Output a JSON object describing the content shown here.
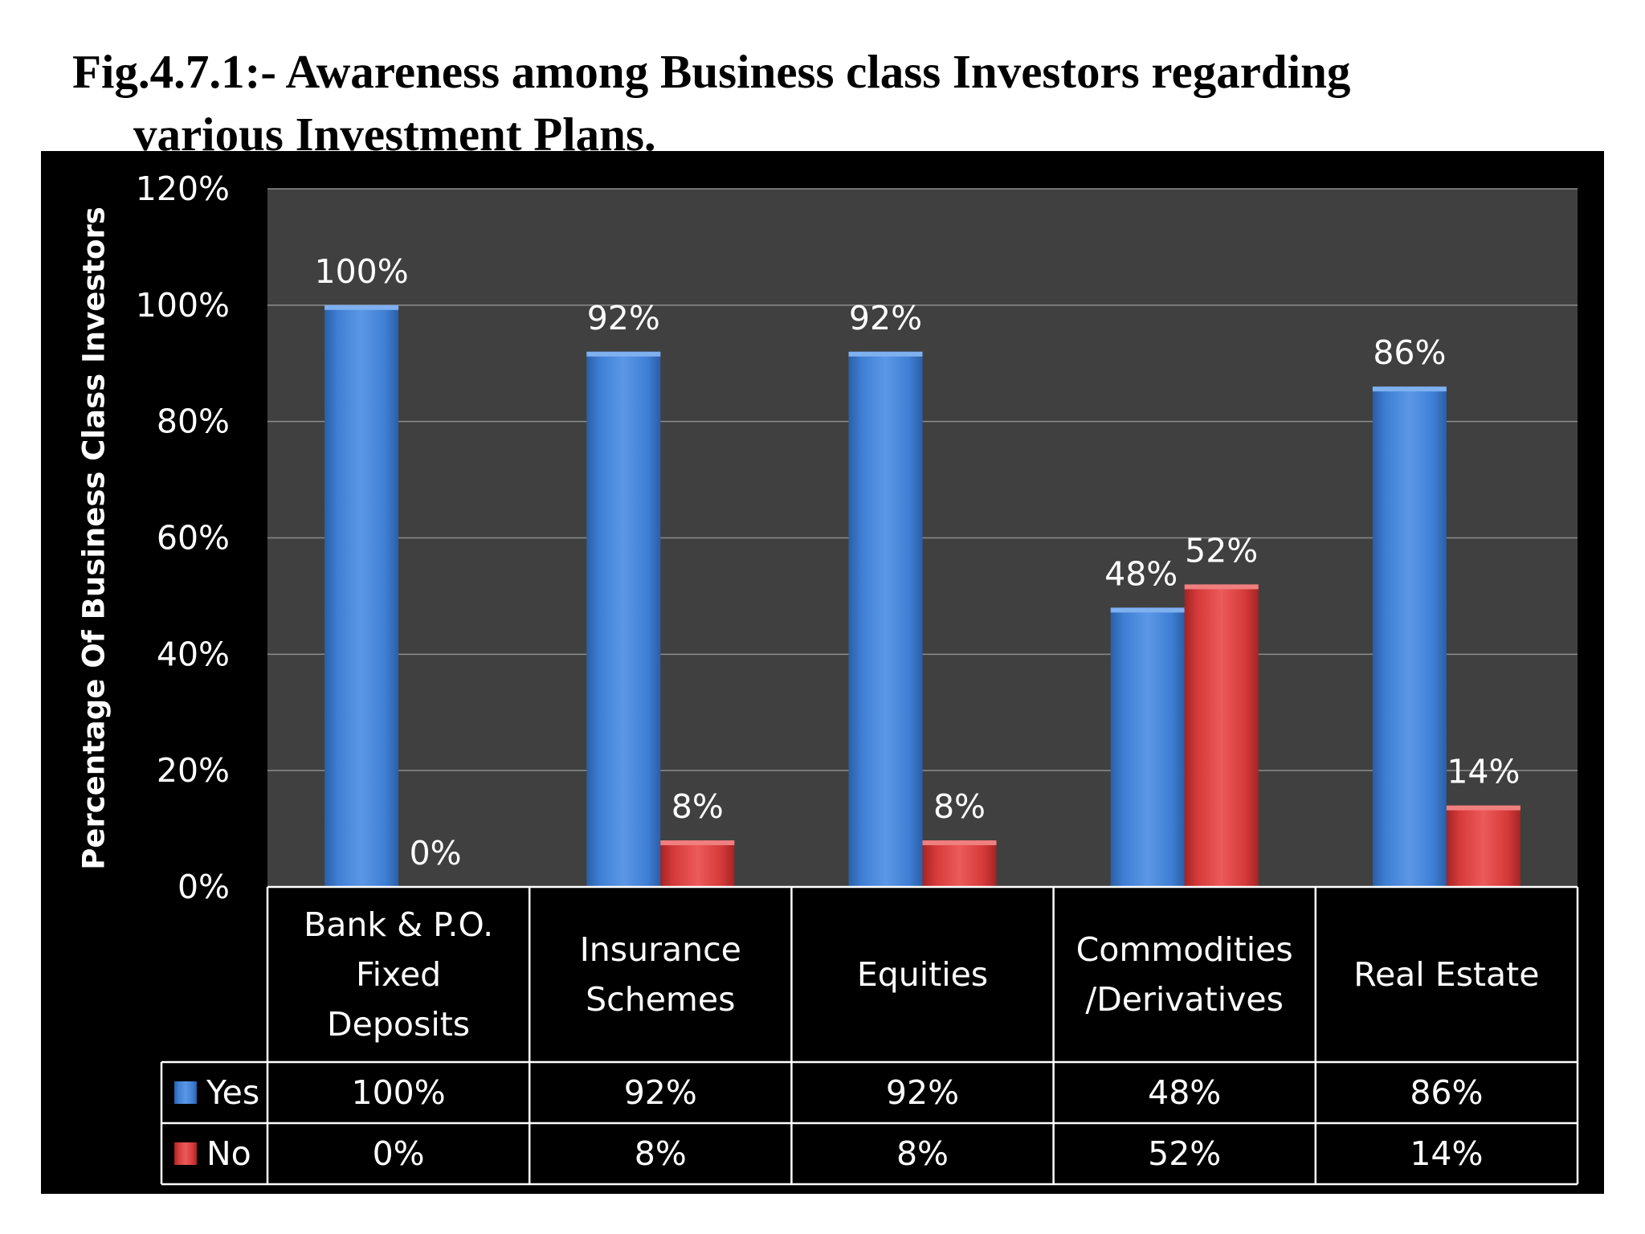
{
  "figure": {
    "title_line1": "Fig.4.7.1:- Awareness among Business class Investors regarding",
    "title_line2": "various Investment Plans."
  },
  "colors": {
    "background": "#000000",
    "plot_area": "#404040",
    "gridline": "#8c8c8c",
    "yes": "#3f7fd4",
    "no": "#d63a3a",
    "text": "#ffffff"
  },
  "chart_data": {
    "type": "bar",
    "ylabel": "Percentage Of Business Class Investors",
    "ylim": [
      0,
      120
    ],
    "yticks": [
      "0%",
      "20%",
      "40%",
      "60%",
      "80%",
      "100%",
      "120%"
    ],
    "grid": true,
    "categories": [
      [
        "Bank & P.O.",
        "Fixed",
        "Deposits"
      ],
      [
        "Insurance",
        "Schemes"
      ],
      [
        "Equities"
      ],
      [
        "Commodities",
        "/Derivatives"
      ],
      [
        "Real Estate"
      ]
    ],
    "series": [
      {
        "name": "Yes",
        "color": "#3f7fd4",
        "values": [
          100,
          92,
          92,
          48,
          86
        ],
        "labels": [
          "100%",
          "92%",
          "92%",
          "48%",
          "86%"
        ]
      },
      {
        "name": "No",
        "color": "#d63a3a",
        "values": [
          0,
          8,
          8,
          52,
          14
        ],
        "labels": [
          "0%",
          "8%",
          "8%",
          "52%",
          "14%"
        ]
      }
    ],
    "data_table": true
  }
}
